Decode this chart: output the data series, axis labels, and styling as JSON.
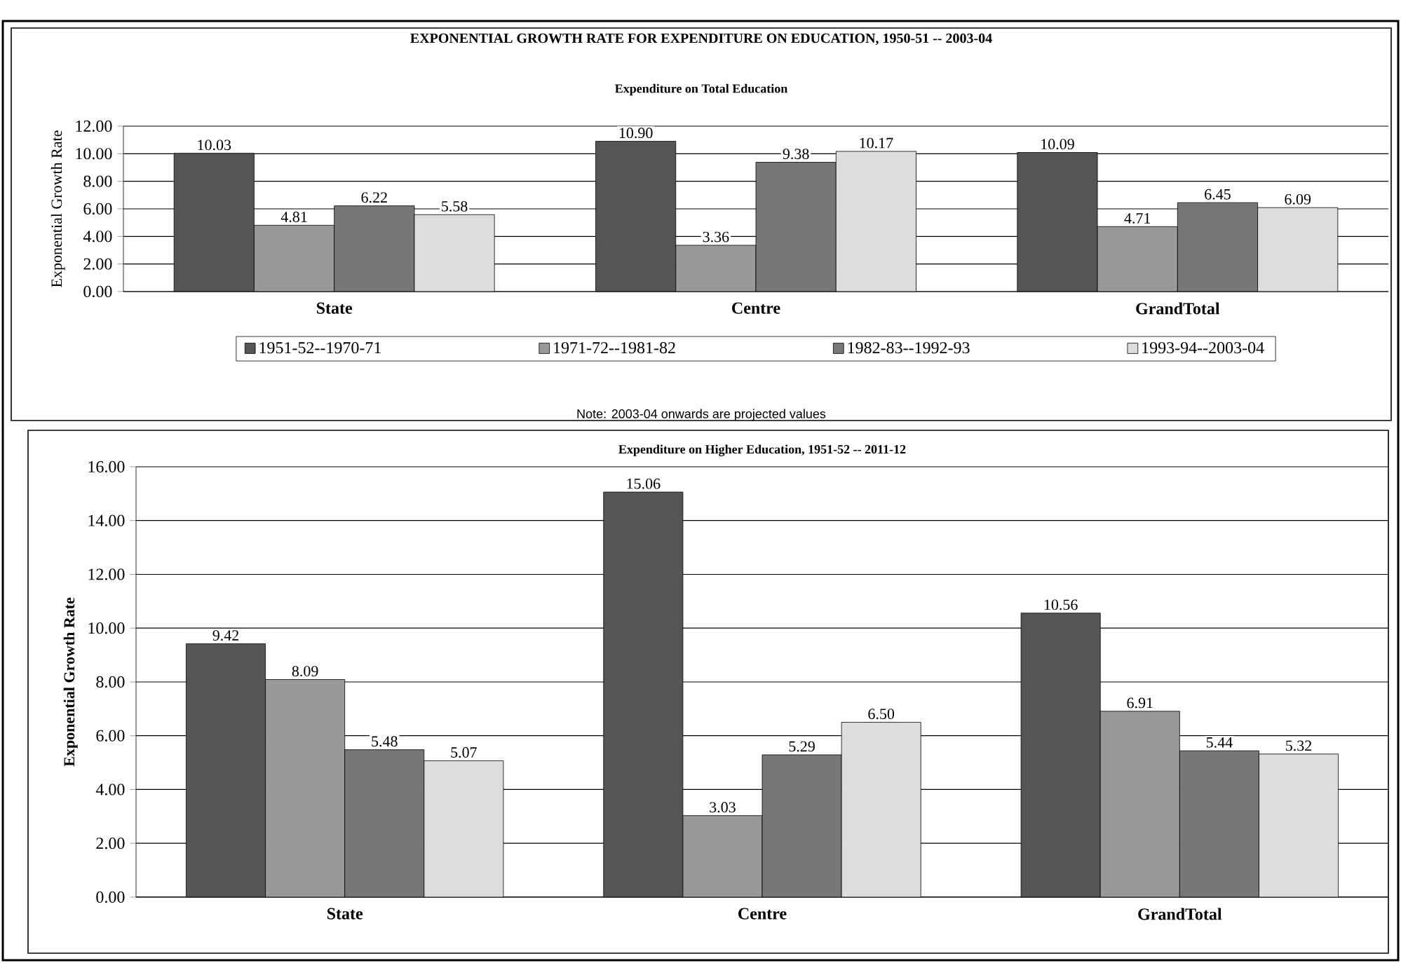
{
  "chart_data": [
    {
      "type": "bar",
      "title": "EXPONENTIAL GROWTH RATE FOR EXPENDITURE ON EDUCATION, 1950-51 --  2003-04",
      "subtitle": "Expenditure on Total Education",
      "ylabel": "Exponential Growth Rate",
      "categories": [
        "State",
        "Centre",
        "GrandTotal"
      ],
      "series": [
        {
          "name": "1951-52--1970-71",
          "color": "#555555",
          "values": [
            10.03,
            10.9,
            10.09
          ],
          "value_labels": [
            "10.03",
            "10.90",
            "10.09"
          ]
        },
        {
          "name": "1971-72--1981-82",
          "color": "#999999",
          "values": [
            4.81,
            3.36,
            4.71
          ],
          "value_labels": [
            "4.81",
            "3.36",
            "4.71"
          ]
        },
        {
          "name": "1982-83--1992-93",
          "color": "#777777",
          "values": [
            6.22,
            9.38,
            6.45
          ],
          "value_labels": [
            "6.22",
            "9.38",
            "6.45"
          ]
        },
        {
          "name": "1993-94--2003-04",
          "color": "#dddddd",
          "values": [
            5.58,
            10.17,
            6.09
          ],
          "value_labels": [
            "5.58",
            "10.17",
            "6.09"
          ]
        }
      ],
      "ylim": [
        0,
        12
      ],
      "yticks": [
        {
          "value": 0,
          "label": "0.00"
        },
        {
          "value": 2,
          "label": "2.00"
        },
        {
          "value": 4,
          "label": "4.00"
        },
        {
          "value": 6,
          "label": "6.00"
        },
        {
          "value": 8,
          "label": "8.00"
        },
        {
          "value": 10,
          "label": "10.00"
        },
        {
          "value": 12,
          "label": "12.00"
        }
      ],
      "grid": "y",
      "legend": "bottom",
      "annotations": [
        "Note: 2003-04 onwards are projected values"
      ]
    },
    {
      "type": "bar",
      "title": "Expenditure on Higher Education, 1951-52 -- 2011-12",
      "ylabel": "Exponential Growth Rate",
      "categories": [
        "State",
        "Centre",
        "GrandTotal"
      ],
      "series": [
        {
          "color": "#555555",
          "values": [
            9.42,
            15.06,
            10.56
          ],
          "value_labels": [
            "9.42",
            "15.06",
            "10.56"
          ]
        },
        {
          "color": "#999999",
          "values": [
            8.09,
            3.03,
            6.91
          ],
          "value_labels": [
            "8.09",
            "3.03",
            "6.91"
          ]
        },
        {
          "color": "#777777",
          "values": [
            5.48,
            5.29,
            5.44
          ],
          "value_labels": [
            "5.48",
            "5.29",
            "5.44"
          ]
        },
        {
          "color": "#dddddd",
          "values": [
            5.07,
            6.5,
            5.32
          ],
          "value_labels": [
            "5.07",
            "6.50",
            "5.32"
          ]
        }
      ],
      "ylim": [
        0,
        16
      ],
      "yticks": [
        {
          "value": 0,
          "label": "0.00"
        },
        {
          "value": 2,
          "label": "2.00"
        },
        {
          "value": 4,
          "label": "4.00"
        },
        {
          "value": 6,
          "label": "6.00"
        },
        {
          "value": 8,
          "label": "8.00"
        },
        {
          "value": 10,
          "label": "10.00"
        },
        {
          "value": 12,
          "label": "12.00"
        },
        {
          "value": 14,
          "label": "14.00"
        },
        {
          "value": 16,
          "label": "16.00"
        }
      ],
      "grid": "y"
    }
  ]
}
